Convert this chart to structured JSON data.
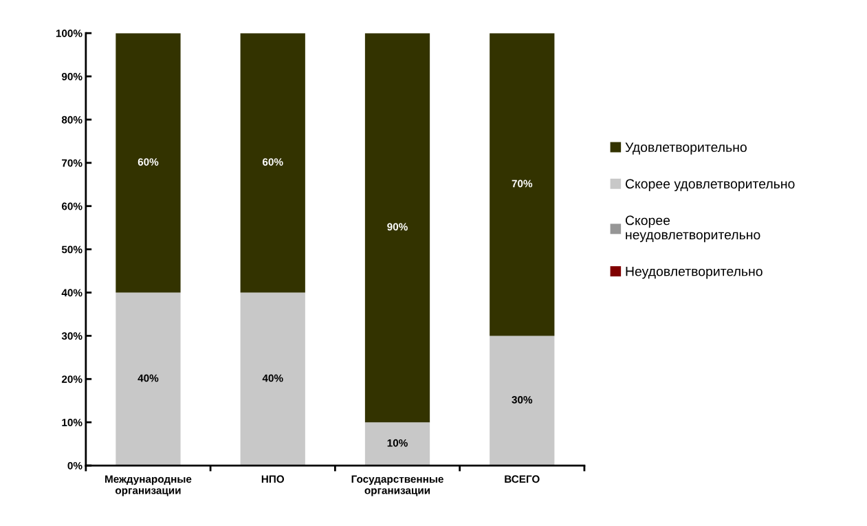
{
  "chart_data": {
    "type": "bar",
    "stacked": true,
    "categories": [
      "Международные\nорганизации",
      "НПО",
      "Государственные\nорганизации",
      "ВСЕГО"
    ],
    "series": [
      {
        "name": "Неудовлетворительно",
        "color": "#800000",
        "values": [
          0,
          0,
          0,
          0
        ],
        "value_labels": [
          null,
          null,
          null,
          null
        ]
      },
      {
        "name": "Скорее\nнеудовлетворительно",
        "color": "#969696",
        "values": [
          0,
          0,
          0,
          0
        ],
        "value_labels": [
          null,
          null,
          null,
          null
        ]
      },
      {
        "name": "Скорее удовлетворительно",
        "color": "#c8c8c8",
        "values": [
          40,
          40,
          10,
          30
        ],
        "value_labels": [
          "40%",
          "40%",
          "10%",
          "30%"
        ]
      },
      {
        "name": "Удовлетворительно",
        "color": "#333300",
        "values": [
          60,
          60,
          90,
          70
        ],
        "value_labels": [
          "60%",
          "60%",
          "90%",
          "70%"
        ]
      }
    ],
    "ylim": [
      0,
      100
    ],
    "yticks": [
      {
        "value": 0,
        "label": "0%"
      },
      {
        "value": 10,
        "label": "10%"
      },
      {
        "value": 20,
        "label": "20%"
      },
      {
        "value": 30,
        "label": "30%"
      },
      {
        "value": 40,
        "label": "40%"
      },
      {
        "value": 50,
        "label": "50%"
      },
      {
        "value": 60,
        "label": "60%"
      },
      {
        "value": 70,
        "label": "70%"
      },
      {
        "value": 80,
        "label": "80%"
      },
      {
        "value": 90,
        "label": "90%"
      },
      {
        "value": 100,
        "label": "100%"
      }
    ],
    "grid": false,
    "legend": "right"
  }
}
